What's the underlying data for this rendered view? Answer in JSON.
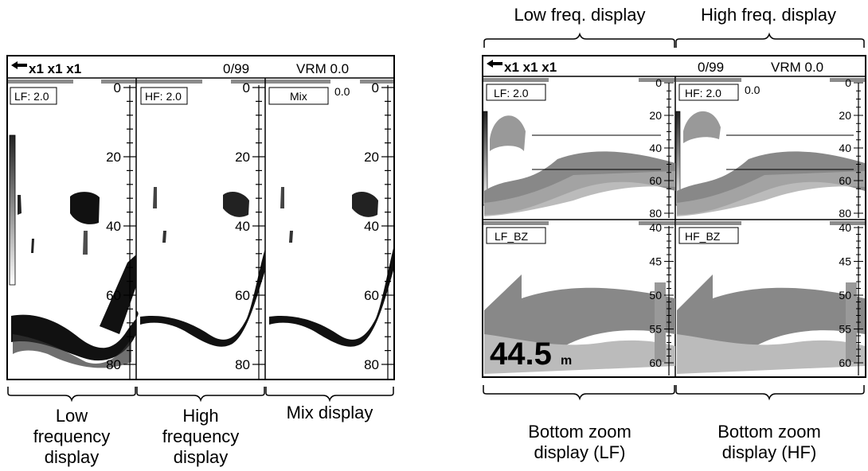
{
  "left_display": {
    "header": {
      "arrow_icon": "left-arrow-icon",
      "zoom_levels": "x1 x1 x1",
      "counter": "0/99",
      "vrm": "VRM  0.0"
    },
    "panels": [
      {
        "tag": "LF: 2.0",
        "depths": [
          "0",
          "20",
          "40",
          "60",
          "80"
        ]
      },
      {
        "tag": "HF: 2.0",
        "depths": [
          "0",
          "20",
          "40",
          "60",
          "80"
        ]
      },
      {
        "tag": "Mix",
        "extra": "0.0",
        "depths": [
          "0",
          "20",
          "40",
          "60",
          "80"
        ]
      }
    ],
    "captions": [
      [
        "Low",
        "frequency",
        "display"
      ],
      [
        "High",
        "frequency",
        "display"
      ],
      [
        "Mix display"
      ]
    ]
  },
  "right_display": {
    "top_captions": [
      "Low freq. display",
      "High freq. display"
    ],
    "header": {
      "arrow_icon": "left-arrow-icon",
      "zoom_levels": "x1 x1 x1",
      "counter": "0/99",
      "vrm": "VRM  0.0"
    },
    "upper_panels": [
      {
        "tag": "LF: 2.0",
        "depths": [
          "0",
          "20",
          "40",
          "60",
          "80"
        ]
      },
      {
        "tag": "HF: 2.0",
        "extra": "0.0",
        "depths": [
          "0",
          "20",
          "40",
          "60",
          "80"
        ]
      }
    ],
    "lower_panels": [
      {
        "tag": "LF_BZ",
        "depths": [
          "40",
          "45",
          "50",
          "55",
          "60"
        ]
      },
      {
        "tag": "HF_BZ",
        "depths": [
          "40",
          "45",
          "50",
          "55",
          "60"
        ]
      }
    ],
    "depth_readout": "44.5",
    "depth_unit": "m",
    "bottom_captions": [
      [
        "Bottom zoom",
        "display (LF)"
      ],
      [
        "Bottom zoom",
        "display (HF)"
      ]
    ]
  },
  "colors": {
    "frame": "#000000",
    "echo_dark": "#1a1a1a",
    "echo_gray": "#888888",
    "bar_gray": "#8c8c8c"
  }
}
